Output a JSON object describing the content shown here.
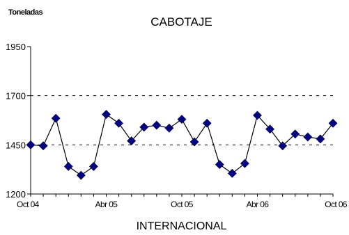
{
  "chart_data": {
    "type": "line",
    "title": "CABOTAJE",
    "subtitle": "INTERNACIONAL",
    "ylabel": "Toneladas",
    "xlabel": "",
    "ylim": [
      1200,
      1950
    ],
    "yticks": [
      1200,
      1450,
      1700,
      1950
    ],
    "ygrid": [
      1450,
      1700
    ],
    "x_tick_labels": [
      {
        "index": 0,
        "label": "Oct 04"
      },
      {
        "index": 6,
        "label": "Abr 05"
      },
      {
        "index": 12,
        "label": "Oct 05"
      },
      {
        "index": 18,
        "label": "Abr 06"
      },
      {
        "index": 24,
        "label": "Oct 06"
      }
    ],
    "series": [
      {
        "color": "#000080",
        "line_color": "#000000",
        "marker": "diamond",
        "values": [
          1450,
          1445,
          1585,
          1340,
          1295,
          1340,
          1605,
          1560,
          1470,
          1540,
          1550,
          1535,
          1580,
          1465,
          1560,
          1350,
          1305,
          1355,
          1600,
          1530,
          1445,
          1505,
          1490,
          1480,
          1560
        ]
      }
    ]
  }
}
